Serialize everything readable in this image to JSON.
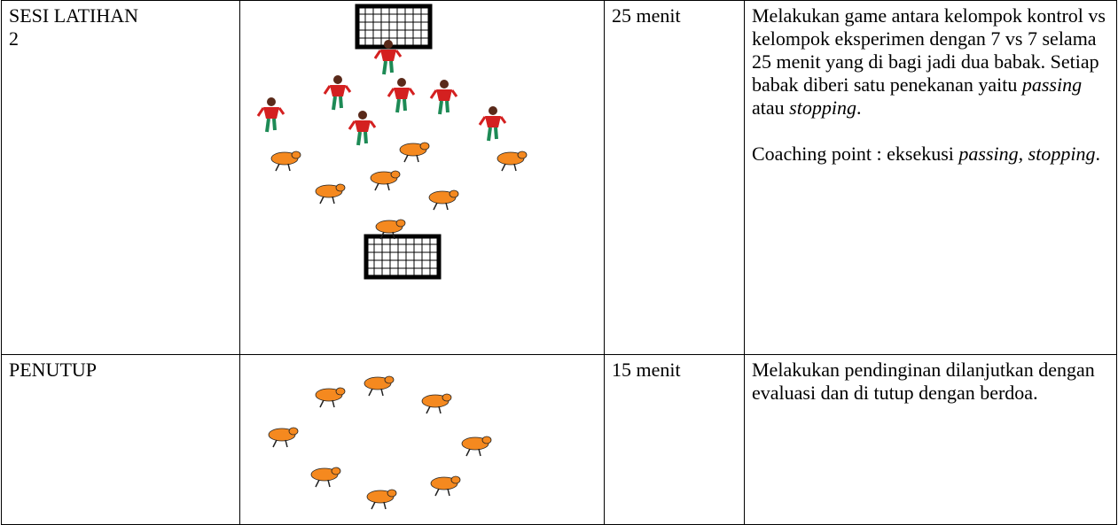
{
  "table": {
    "rows": [
      {
        "session": "SESI LATIHAN 2",
        "duration": "25 menit",
        "description": [
          [
            {
              "text": "Melakukan game antara kelompok kontrol vs kelompok eksperimen dengan 7 vs 7 selama 25 menit yang di bagi jadi dua babak. Setiap babak diberi satu penekanan yaitu ",
              "italic": false
            },
            {
              "text": "passing",
              "italic": true
            },
            {
              "text": " atau ",
              "italic": false
            },
            {
              "text": "stopping",
              "italic": true
            },
            {
              "text": ".",
              "italic": false
            }
          ],
          [
            {
              "text": "Coaching point : eksekusi ",
              "italic": false
            },
            {
              "text": "passing, stopping",
              "italic": true
            },
            {
              "text": ".",
              "italic": false
            }
          ]
        ]
      },
      {
        "session": "PENUTUP",
        "duration": "15 menit",
        "description": [
          [
            {
              "text": "Melakukan pendinginan dilanjutkan dengan evaluasi dan di tutup dengan berdoa.",
              "italic": false
            }
          ]
        ]
      }
    ]
  }
}
